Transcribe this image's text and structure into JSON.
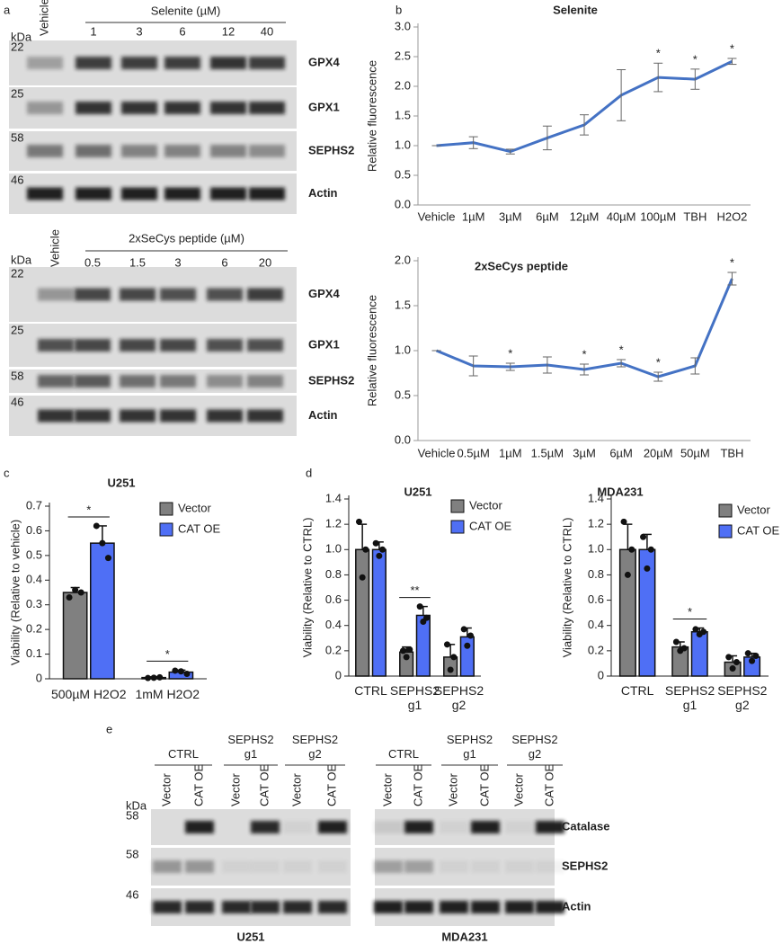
{
  "panel_labels": [
    "a",
    "b",
    "c",
    "d",
    "e"
  ],
  "blots": [
    {
      "header": "Selenite (µM)",
      "kda": "kDa",
      "lanes": [
        "Vehicle",
        "1",
        "3",
        "6",
        "12",
        "40"
      ],
      "rows": [
        {
          "marker": "22",
          "label": "GPX4"
        },
        {
          "marker": "25",
          "label": "GPX1"
        },
        {
          "marker": "58",
          "label": "SEPHS2"
        },
        {
          "marker": "46",
          "label": "Actin"
        }
      ]
    },
    {
      "header": "2xSeCys peptide (µM)",
      "kda": "kDa",
      "lanes": [
        "Vehicle",
        "0.5",
        "1.5",
        "3",
        "6",
        "20"
      ],
      "rows": [
        {
          "marker": "22",
          "label": "GPX4"
        },
        {
          "marker": "25",
          "label": "GPX1"
        },
        {
          "marker": "58",
          "label": "SEPHS2"
        },
        {
          "marker": "46",
          "label": "Actin"
        }
      ]
    },
    {
      "kda": "kDa",
      "groups": [
        "CTRL",
        "SEPHS2 g1",
        "SEPHS2 g2"
      ],
      "lanes": [
        "Vector",
        "CAT OE",
        "Vector",
        "CAT OE",
        "Vector",
        "CAT OE"
      ],
      "rows": [
        {
          "marker": "58"
        },
        {
          "marker": "58"
        },
        {
          "marker": "46"
        }
      ],
      "cell_line": "U251"
    },
    {
      "groups": [
        "CTRL",
        "SEPHS2 g1",
        "SEPHS2 g2"
      ],
      "lanes": [
        "Vector",
        "CAT OE",
        "Vector",
        "CAT OE",
        "Vector",
        "CAT OE"
      ],
      "rows": [
        {
          "label": "Catalase"
        },
        {
          "label": "SEPHS2"
        },
        {
          "label": "Actin"
        }
      ],
      "cell_line": "MDA231"
    }
  ],
  "chart_data": [
    {
      "type": "line",
      "title": "Selenite",
      "ylabel": "Relative fluorescence",
      "categories": [
        "Vehicle",
        "1µM",
        "3µM",
        "6µM",
        "12µM",
        "40µM",
        "100µM",
        "TBH",
        "H2O2"
      ],
      "values": [
        1.0,
        1.05,
        0.9,
        1.13,
        1.35,
        1.85,
        2.15,
        2.12,
        2.42
      ],
      "errors": [
        0,
        0.1,
        0.04,
        0.2,
        0.17,
        0.43,
        0.24,
        0.17,
        0.05
      ],
      "markers": [
        null,
        null,
        null,
        null,
        null,
        null,
        "*",
        "*",
        "*"
      ],
      "color": "#4472c4",
      "ylim": [
        0,
        3
      ],
      "yticks": [
        {
          "value": 0,
          "label": "0.0"
        },
        {
          "value": 0.5,
          "label": "0.5"
        },
        {
          "value": 1,
          "label": "1.0"
        },
        {
          "value": 1.5,
          "label": "1.5"
        },
        {
          "value": 2,
          "label": "2.0"
        },
        {
          "value": 2.5,
          "label": "2.5"
        },
        {
          "value": 3,
          "label": "3.0"
        }
      ],
      "grid": false
    },
    {
      "type": "line",
      "title": "2xSeCys peptide",
      "ylabel": "Relative fluorescence",
      "categories": [
        "Vehicle",
        "0.5µM",
        "1µM",
        "1.5µM",
        "3µM",
        "6µM",
        "20µM",
        "50µM",
        "TBH"
      ],
      "values": [
        1.0,
        0.83,
        0.82,
        0.84,
        0.79,
        0.86,
        0.71,
        0.83,
        1.8
      ],
      "errors": [
        0,
        0.11,
        0.04,
        0.09,
        0.06,
        0.04,
        0.05,
        0.09,
        0.07
      ],
      "markers": [
        null,
        null,
        "*",
        null,
        "*",
        "*",
        "*",
        null,
        "*"
      ],
      "color": "#4472c4",
      "ylim": [
        0,
        2
      ],
      "yticks": [
        {
          "value": 0,
          "label": "0.0"
        },
        {
          "value": 0.5,
          "label": "0.5"
        },
        {
          "value": 1,
          "label": "1.0"
        },
        {
          "value": 1.5,
          "label": "1.5"
        },
        {
          "value": 2,
          "label": "2.0"
        }
      ],
      "grid": false
    },
    {
      "type": "bar",
      "title": "U251",
      "ylabel": "Viability (Relative to vehicle)",
      "categories": [
        "500µM H2O2",
        "1mM H2O2"
      ],
      "series": [
        {
          "name": "Vector",
          "color": "#808080",
          "values": [
            0.35,
            0.005
          ],
          "errors": [
            0.02,
            0.003
          ],
          "points": [
            [
              0.33,
              0.36,
              0.35
            ],
            [
              0.003,
              0.004,
              0.006
            ]
          ]
        },
        {
          "name": "CAT OE",
          "color": "#4f6ff5",
          "values": [
            0.55,
            0.027
          ],
          "errors": [
            0.07,
            0.008
          ],
          "points": [
            [
              0.62,
              0.55,
              0.49
            ],
            [
              0.033,
              0.03,
              0.02
            ]
          ]
        }
      ],
      "significance": [
        "*",
        "*"
      ],
      "ylim": [
        0,
        0.7
      ],
      "yticks": [
        0,
        0.1,
        0.2,
        0.3,
        0.4,
        0.5,
        0.6,
        0.7
      ],
      "legend": "upper right",
      "grid": false
    },
    {
      "type": "bar",
      "title": "U251",
      "ylabel": "Viability (Relative to CTRL)",
      "categories": [
        "CTRL",
        "SEPHS2 g1",
        "SEPHS2 g2"
      ],
      "series": [
        {
          "name": "Vector",
          "color": "#808080",
          "values": [
            1.0,
            0.19,
            0.15
          ],
          "errors": [
            0.2,
            0.04,
            0.1
          ],
          "points": [
            [
              1.22,
              0.78,
              1.0
            ],
            [
              0.2,
              0.15,
              0.21
            ],
            [
              0.25,
              0.05,
              0.15
            ]
          ]
        },
        {
          "name": "CAT OE",
          "color": "#4f6ff5",
          "values": [
            1.0,
            0.48,
            0.31
          ],
          "errors": [
            0.06,
            0.07,
            0.07
          ],
          "points": [
            [
              1.05,
              0.95,
              1.0
            ],
            [
              0.55,
              0.43,
              0.46
            ],
            [
              0.37,
              0.24,
              0.32
            ]
          ]
        }
      ],
      "significance": [
        null,
        "**",
        null
      ],
      "ylim": [
        0,
        1.4
      ],
      "yticks": [
        0,
        0.2,
        0.4,
        0.6,
        0.8,
        {
          "value": 1,
          "label": "1.0"
        },
        1.2,
        1.4
      ],
      "legend": "upper right",
      "grid": false
    },
    {
      "type": "bar",
      "title": "MDA231",
      "ylabel": "Viability (Relative to CTRL)",
      "categories": [
        "CTRL",
        "SEPHS2 g1",
        "SEPHS2 g2"
      ],
      "series": [
        {
          "name": "Vector",
          "color": "#808080",
          "values": [
            1.0,
            0.23,
            0.11
          ],
          "errors": [
            0.2,
            0.04,
            0.05
          ],
          "points": [
            [
              1.22,
              0.8,
              1.0
            ],
            [
              0.27,
              0.2,
              0.22
            ],
            [
              0.15,
              0.06,
              0.11
            ]
          ]
        },
        {
          "name": "CAT OE",
          "color": "#4f6ff5",
          "values": [
            1.0,
            0.35,
            0.15
          ],
          "errors": [
            0.12,
            0.03,
            0.03
          ],
          "points": [
            [
              1.1,
              0.85,
              1.0
            ],
            [
              0.37,
              0.33,
              0.35
            ],
            [
              0.18,
              0.12,
              0.16
            ]
          ]
        }
      ],
      "significance": [
        null,
        "*",
        null
      ],
      "ylim": [
        0,
        1.4
      ],
      "yticks": [
        0,
        0.2,
        0.4,
        0.6,
        0.8,
        {
          "value": 1,
          "label": "1.0"
        },
        1.2,
        1.4
      ],
      "legend": "upper right",
      "grid": false
    }
  ]
}
